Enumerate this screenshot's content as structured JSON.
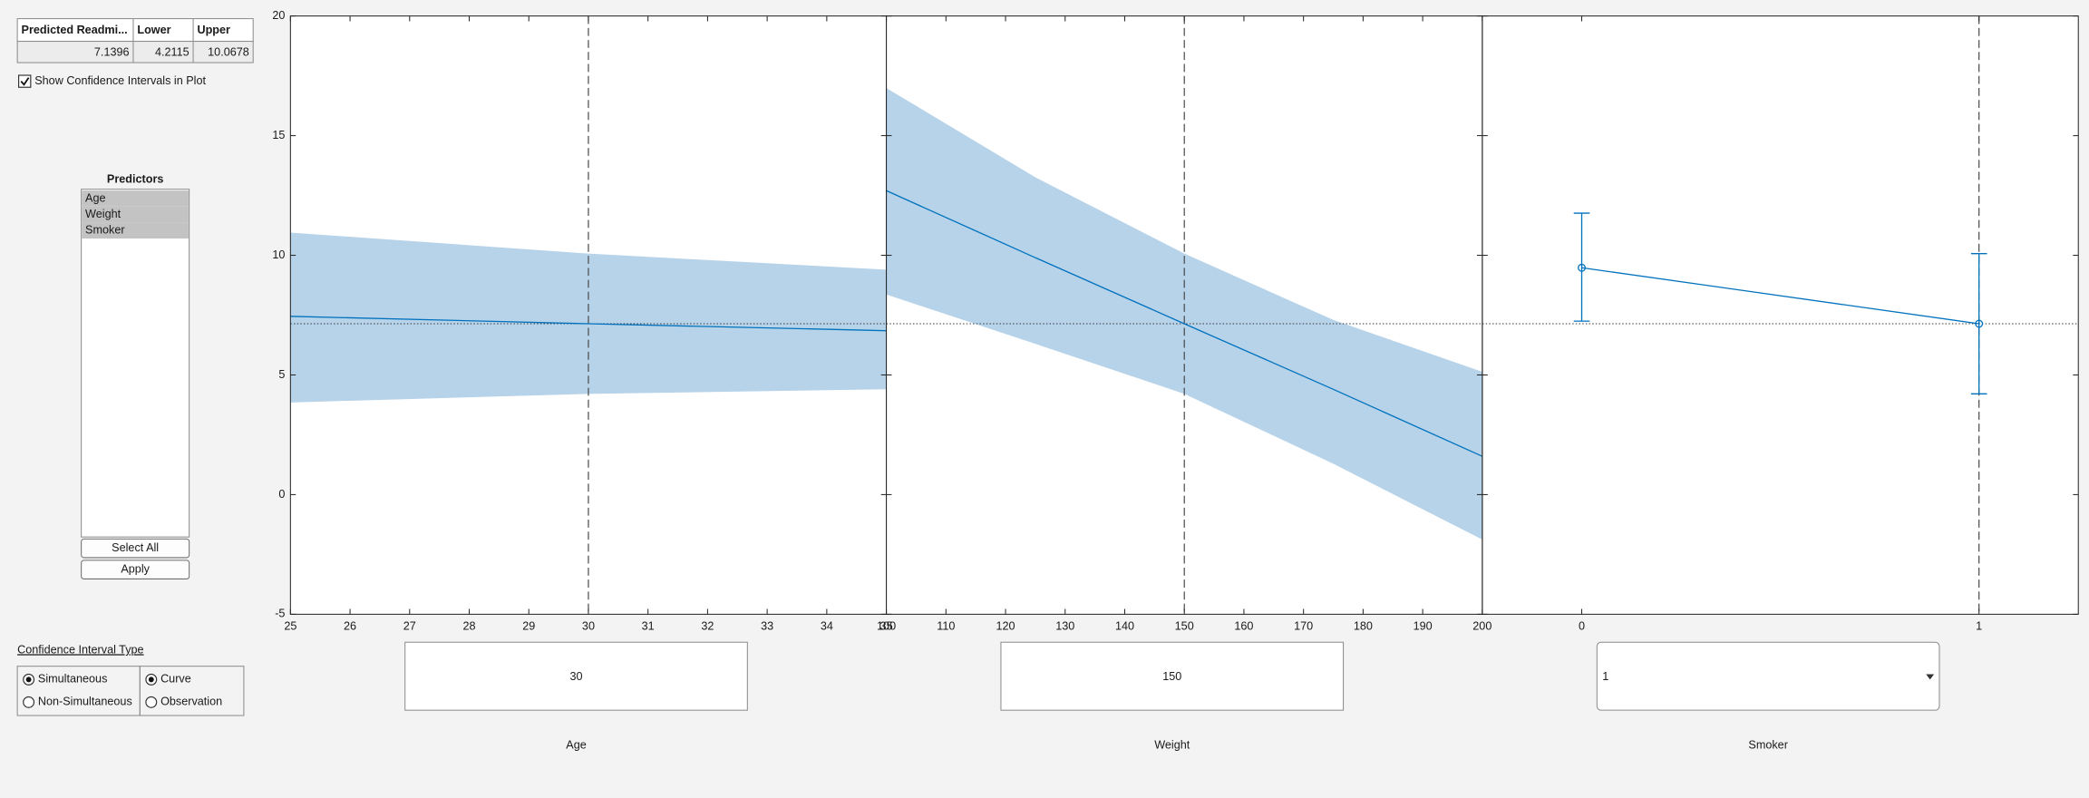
{
  "table": {
    "columns": [
      "Predicted Readmi...",
      "Lower",
      "Upper"
    ],
    "rows": [
      [
        7.1396,
        4.2115,
        10.0678
      ]
    ]
  },
  "show_ci_checkbox": {
    "label": "Show Confidence Intervals in Plot",
    "checked": true
  },
  "predictors": {
    "title": "Predictors",
    "items": [
      "Age",
      "Weight",
      "Smoker"
    ]
  },
  "buttons": [
    "Select All",
    "Apply"
  ],
  "ci_type": {
    "title": "Confidence Interval Type",
    "mode_options": [
      "Simultaneous",
      "Non-Simultaneous"
    ],
    "mode_selected": 0,
    "bound_options": [
      "Curve",
      "Observation"
    ],
    "bound_selected": 0
  },
  "chart_data": [
    {
      "type": "line",
      "xlabel": "Age",
      "control": {
        "kind": "edit",
        "value": 30
      },
      "xlim": [
        25,
        35
      ],
      "xticks": [
        25,
        26,
        27,
        28,
        29,
        30,
        31,
        32,
        33,
        34,
        35
      ],
      "ylim": [
        -5,
        20
      ],
      "yticks": [
        -5,
        0,
        5,
        10,
        15,
        20
      ],
      "x": [
        25,
        30,
        35
      ],
      "series": [
        {
          "color": "#0072bd",
          "band_color": "#b7d3ea",
          "values": [
            7.45,
            7.14,
            6.85
          ],
          "lower": [
            3.85,
            4.21,
            4.4
          ],
          "upper": [
            10.95,
            10.07,
            9.4
          ]
        }
      ]
    },
    {
      "type": "line",
      "xlabel": "Weight",
      "control": {
        "kind": "edit",
        "value": 150
      },
      "xlim": [
        100,
        200
      ],
      "xticks": [
        100,
        110,
        120,
        130,
        140,
        150,
        160,
        170,
        180,
        190,
        200
      ],
      "ylim": [
        -5,
        20
      ],
      "yticks": [
        -5,
        0,
        5,
        10,
        15,
        20
      ],
      "x": [
        100,
        125,
        150,
        175,
        200
      ],
      "series": [
        {
          "color": "#0072bd",
          "band_color": "#b7d3ea",
          "values": [
            12.7,
            9.9,
            7.14,
            4.4,
            1.6
          ],
          "lower": [
            8.36,
            6.3,
            4.21,
            1.29,
            -1.88
          ],
          "upper": [
            16.99,
            13.26,
            10.07,
            7.3,
            5.13
          ]
        }
      ]
    },
    {
      "type": "errorbar",
      "xlabel": "Smoker",
      "control": {
        "kind": "dropdown",
        "value": 1
      },
      "xlim": [
        -0.25,
        1.25
      ],
      "xticks": [
        0,
        1
      ],
      "ylim": [
        -5,
        20
      ],
      "yticks": [
        -5,
        0,
        5,
        10,
        15,
        20
      ],
      "x": [
        0,
        1
      ],
      "series": [
        {
          "color": "#0072bd",
          "values": [
            9.48,
            7.14
          ],
          "lower": [
            7.25,
            4.21
          ],
          "upper": [
            11.76,
            10.07
          ]
        }
      ]
    }
  ]
}
